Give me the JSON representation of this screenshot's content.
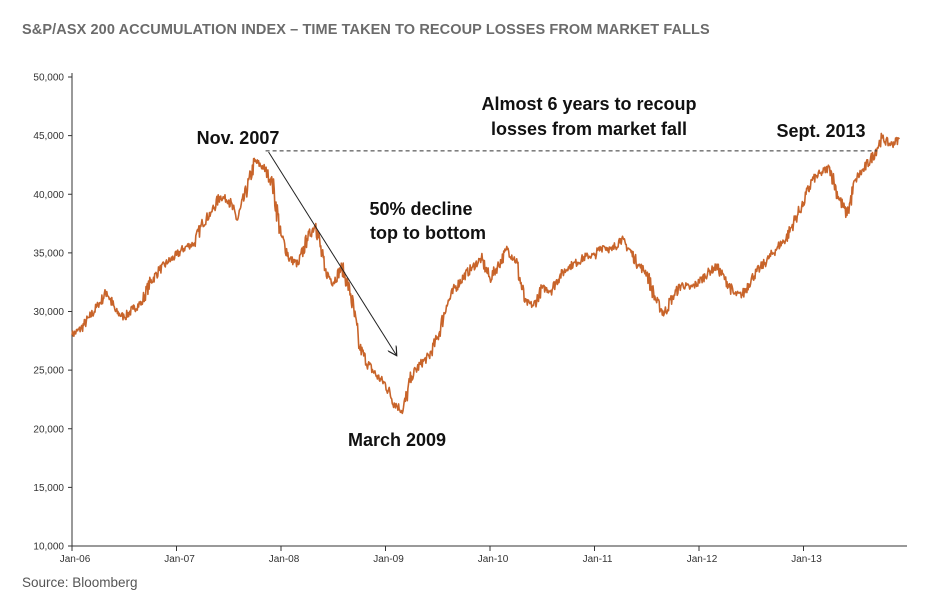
{
  "title": "S&P/ASX 200 ACCUMULATION INDEX – TIME TAKEN TO RECOUP LOSSES FROM MARKET FALLS",
  "source": "Source: Bloomberg",
  "colors": {
    "line": "#c8642a",
    "axis": "#333333",
    "annotation": "#111111",
    "title": "#6b6b6b"
  },
  "chart_data": {
    "type": "line",
    "title": "S&P/ASX 200 ACCUMULATION INDEX – TIME TAKEN TO RECOUP LOSSES FROM MARKET FALLS",
    "xlabel": "",
    "ylabel": "",
    "ylim": [
      10000,
      50000
    ],
    "xlim": [
      "2006-01",
      "2013-12"
    ],
    "grid": false,
    "legend": "none",
    "y_ticks": [
      "10,000",
      "15,000",
      "20,000",
      "25,000",
      "30,000",
      "35,000",
      "40,000",
      "45,000",
      "50,000"
    ],
    "x_ticks": [
      "Jan-06",
      "Jan-07",
      "Jan-08",
      "Jan-09",
      "Jan-10",
      "Jan-11",
      "Jan-12",
      "Jan-13"
    ],
    "series": [
      {
        "name": "",
        "x": [
          "2006-01",
          "2006-02",
          "2006-03",
          "2006-04",
          "2006-05",
          "2006-06",
          "2006-07",
          "2006-08",
          "2006-09",
          "2006-10",
          "2006-11",
          "2006-12",
          "2007-01",
          "2007-02",
          "2007-03",
          "2007-04",
          "2007-05",
          "2007-06",
          "2007-07",
          "2007-08",
          "2007-09",
          "2007-10",
          "2007-11",
          "2007-12",
          "2008-01",
          "2008-02",
          "2008-03",
          "2008-04",
          "2008-05",
          "2008-06",
          "2008-07",
          "2008-08",
          "2008-09",
          "2008-10",
          "2008-11",
          "2008-12",
          "2009-01",
          "2009-02",
          "2009-03",
          "2009-04",
          "2009-05",
          "2009-06",
          "2009-07",
          "2009-08",
          "2009-09",
          "2009-10",
          "2009-11",
          "2009-12",
          "2010-01",
          "2010-02",
          "2010-03",
          "2010-04",
          "2010-05",
          "2010-06",
          "2010-07",
          "2010-08",
          "2010-09",
          "2010-10",
          "2010-11",
          "2010-12",
          "2011-01",
          "2011-02",
          "2011-03",
          "2011-04",
          "2011-05",
          "2011-06",
          "2011-07",
          "2011-08",
          "2011-09",
          "2011-10",
          "2011-11",
          "2011-12",
          "2012-01",
          "2012-02",
          "2012-03",
          "2012-04",
          "2012-05",
          "2012-06",
          "2012-07",
          "2012-08",
          "2012-09",
          "2012-10",
          "2012-11",
          "2012-12",
          "2013-01",
          "2013-02",
          "2013-03",
          "2013-04",
          "2013-05",
          "2013-06",
          "2013-07",
          "2013-08",
          "2013-09",
          "2013-10",
          "2013-11",
          "2013-12"
        ],
        "values": [
          28000,
          28500,
          29500,
          30500,
          31700,
          30000,
          29500,
          30200,
          30800,
          32500,
          33500,
          34200,
          34800,
          35500,
          35800,
          37500,
          38500,
          39800,
          39500,
          37800,
          40200,
          42800,
          42300,
          41000,
          36500,
          34500,
          34000,
          36200,
          37500,
          33500,
          32500,
          33800,
          31500,
          27000,
          25500,
          24500,
          23800,
          22200,
          21500,
          24500,
          25500,
          26200,
          27800,
          30500,
          32000,
          33000,
          33800,
          34500,
          32800,
          34000,
          35300,
          34300,
          30800,
          30500,
          32000,
          31800,
          33000,
          33800,
          34200,
          34700,
          34800,
          35600,
          35200,
          36200,
          35300,
          34000,
          33300,
          31000,
          29800,
          31300,
          32300,
          32000,
          32500,
          33300,
          33800,
          32800,
          31500,
          31400,
          32800,
          33700,
          34500,
          35500,
          36200,
          37800,
          39300,
          41200,
          41800,
          42300,
          39800,
          38200,
          41300,
          42200,
          43300,
          44800,
          44200,
          44700
        ]
      }
    ],
    "annotations": [
      {
        "text": "Nov. 2007"
      },
      {
        "text": "50% decline"
      },
      {
        "text": "top to bottom"
      },
      {
        "text": "March 2009"
      },
      {
        "text": "Almost 6 years to recoup"
      },
      {
        "text": "losses from market fall"
      },
      {
        "text": "Sept. 2013"
      }
    ],
    "reference_line": {
      "y": 43700,
      "from": "2007-11",
      "to": "2013-09",
      "style": "dashed"
    }
  }
}
